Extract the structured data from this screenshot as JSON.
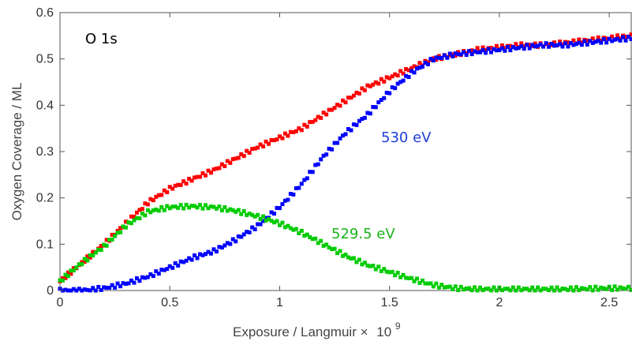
{
  "chart_data": {
    "type": "scatter",
    "title": "",
    "xlabel": "Exposure / Langmuir × 10^9",
    "xlabel_base": "Exposure / Langmuir ×",
    "xlabel_exp_base": "10",
    "xlabel_exp": "9",
    "ylabel": "Oxygen Coverage / ML",
    "xlim": [
      0,
      2.6
    ],
    "ylim": [
      0,
      0.6
    ],
    "x_ticks": [
      0,
      0.5,
      1,
      1.5,
      2,
      2.5
    ],
    "x_tick_labels": [
      "0",
      "0.5",
      "1",
      "1.5",
      "2",
      "2.5"
    ],
    "y_ticks": [
      0,
      0.1,
      0.2,
      0.3,
      0.4,
      0.5,
      0.6
    ],
    "y_tick_labels": [
      "0",
      "0.1",
      "0.2",
      "0.3",
      "0.4",
      "0.5",
      "0.6"
    ],
    "grid": false,
    "legend": "none",
    "annotations": {
      "panel_label": "O 1s",
      "label_530": "530 eV",
      "label_529_5": "529.5 eV"
    },
    "series": [
      {
        "color": "#ff0000",
        "x": [
          0,
          0.1,
          0.2,
          0.3,
          0.4,
          0.5,
          0.6,
          0.7,
          0.8,
          0.9,
          1.0,
          1.1,
          1.2,
          1.3,
          1.4,
          1.5,
          1.6,
          1.7,
          1.8,
          1.9,
          2.0,
          2.1,
          2.2,
          2.3,
          2.4,
          2.5,
          2.6
        ],
        "y": [
          0.02,
          0.06,
          0.1,
          0.145,
          0.19,
          0.22,
          0.24,
          0.26,
          0.285,
          0.31,
          0.33,
          0.35,
          0.38,
          0.41,
          0.44,
          0.46,
          0.48,
          0.5,
          0.51,
          0.52,
          0.525,
          0.53,
          0.53,
          0.535,
          0.54,
          0.545,
          0.55
        ]
      },
      {
        "name": "530 eV",
        "color": "#0000ff",
        "x": [
          0,
          0.1,
          0.2,
          0.3,
          0.4,
          0.5,
          0.6,
          0.7,
          0.8,
          0.9,
          1.0,
          1.1,
          1.2,
          1.3,
          1.4,
          1.5,
          1.6,
          1.7,
          1.8,
          1.9,
          2.0,
          2.1,
          2.2,
          2.3,
          2.4,
          2.5,
          2.6
        ],
        "y": [
          0.0,
          0.0,
          0.005,
          0.015,
          0.03,
          0.05,
          0.07,
          0.085,
          0.11,
          0.14,
          0.18,
          0.23,
          0.29,
          0.34,
          0.38,
          0.43,
          0.47,
          0.5,
          0.51,
          0.515,
          0.52,
          0.525,
          0.53,
          0.53,
          0.535,
          0.54,
          0.545
        ]
      },
      {
        "name": "529.5 eV",
        "color": "#00cc00",
        "x": [
          0,
          0.1,
          0.2,
          0.3,
          0.4,
          0.5,
          0.6,
          0.7,
          0.8,
          0.9,
          1.0,
          1.1,
          1.2,
          1.3,
          1.4,
          1.5,
          1.6,
          1.7,
          1.8,
          1.9,
          2.0,
          2.1,
          2.2,
          2.3,
          2.4,
          2.5,
          2.6
        ],
        "y": [
          0.02,
          0.06,
          0.095,
          0.14,
          0.17,
          0.18,
          0.182,
          0.18,
          0.172,
          0.16,
          0.145,
          0.125,
          0.1,
          0.075,
          0.055,
          0.04,
          0.025,
          0.012,
          0.005,
          0.003,
          0.003,
          0.003,
          0.003,
          0.003,
          0.004,
          0.005,
          0.005
        ]
      }
    ]
  }
}
